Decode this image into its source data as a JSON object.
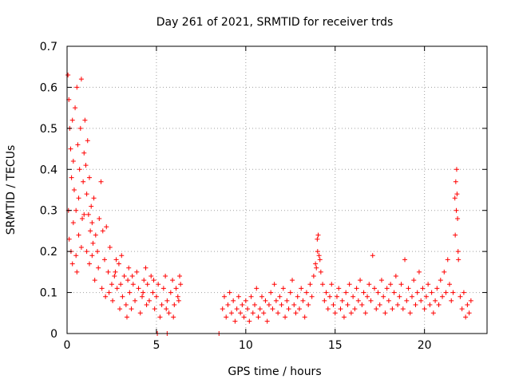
{
  "chart_data": {
    "type": "scatter",
    "title": "Day 261 of 2021, SRMTID for receiver trds",
    "xlabel": "GPS time / hours",
    "ylabel": "SRMTID / TECUs",
    "xlim": [
      0,
      23.5
    ],
    "ylim": [
      0,
      0.7
    ],
    "x_ticks": [
      0,
      5,
      10,
      15,
      20
    ],
    "y_ticks": [
      0,
      0.1,
      0.2,
      0.3,
      0.4,
      0.5,
      0.6,
      0.7
    ],
    "x_tick_labels": [
      "0",
      "5",
      "10",
      "15",
      "20"
    ],
    "y_tick_labels": [
      "0",
      "0.1",
      "0.2",
      "0.3",
      "0.4",
      "0.5",
      "0.6",
      "0.7"
    ],
    "grid": true,
    "marker": "+",
    "color": "#ff0000",
    "series": [
      {
        "name": "SRMTID",
        "points": [
          [
            0.05,
            0.63
          ],
          [
            0.1,
            0.57
          ],
          [
            0.15,
            0.5
          ],
          [
            0.2,
            0.45
          ],
          [
            0.25,
            0.38
          ],
          [
            0.3,
            0.52
          ],
          [
            0.35,
            0.42
          ],
          [
            0.4,
            0.35
          ],
          [
            0.45,
            0.55
          ],
          [
            0.5,
            0.3
          ],
          [
            0.55,
            0.6
          ],
          [
            0.6,
            0.46
          ],
          [
            0.65,
            0.33
          ],
          [
            0.7,
            0.4
          ],
          [
            0.75,
            0.5
          ],
          [
            0.8,
            0.62
          ],
          [
            0.85,
            0.28
          ],
          [
            0.9,
            0.37
          ],
          [
            0.95,
            0.44
          ],
          [
            1.0,
            0.52
          ],
          [
            1.05,
            0.41
          ],
          [
            1.1,
            0.34
          ],
          [
            1.15,
            0.47
          ],
          [
            1.2,
            0.29
          ],
          [
            1.25,
            0.38
          ],
          [
            1.3,
            0.25
          ],
          [
            1.35,
            0.31
          ],
          [
            1.4,
            0.27
          ],
          [
            1.45,
            0.22
          ],
          [
            1.5,
            0.33
          ],
          [
            1.6,
            0.24
          ],
          [
            1.7,
            0.2
          ],
          [
            1.8,
            0.28
          ],
          [
            1.9,
            0.37
          ],
          [
            2.0,
            0.25
          ],
          [
            2.1,
            0.18
          ],
          [
            2.2,
            0.26
          ],
          [
            2.3,
            0.15
          ],
          [
            2.4,
            0.21
          ],
          [
            2.5,
            0.12
          ],
          [
            0.12,
            0.23
          ],
          [
            0.22,
            0.2
          ],
          [
            0.35,
            0.27
          ],
          [
            0.5,
            0.19
          ],
          [
            0.65,
            0.24
          ],
          [
            0.8,
            0.21
          ],
          [
            0.95,
            0.29
          ],
          [
            1.1,
            0.2
          ],
          [
            1.25,
            0.17
          ],
          [
            1.4,
            0.19
          ],
          [
            0.08,
            0.3
          ],
          [
            0.3,
            0.17
          ],
          [
            0.55,
            0.15
          ],
          [
            1.55,
            0.13
          ],
          [
            1.75,
            0.16
          ],
          [
            1.95,
            0.11
          ],
          [
            2.15,
            0.09
          ],
          [
            2.35,
            0.1
          ],
          [
            2.55,
            0.08
          ],
          [
            2.65,
            0.14
          ],
          [
            2.7,
            0.15
          ],
          [
            2.8,
            0.11
          ],
          [
            2.9,
            0.17
          ],
          [
            3.0,
            0.12
          ],
          [
            3.1,
            0.09
          ],
          [
            3.2,
            0.14
          ],
          [
            3.3,
            0.07
          ],
          [
            3.4,
            0.13
          ],
          [
            3.5,
            0.1
          ],
          [
            3.6,
            0.06
          ],
          [
            3.7,
            0.12
          ],
          [
            3.8,
            0.08
          ],
          [
            3.9,
            0.15
          ],
          [
            4.0,
            0.11
          ],
          [
            4.1,
            0.05
          ],
          [
            4.2,
            0.09
          ],
          [
            4.3,
            0.13
          ],
          [
            4.4,
            0.16
          ],
          [
            4.5,
            0.12
          ],
          [
            4.6,
            0.08
          ],
          [
            4.7,
            0.14
          ],
          [
            4.8,
            0.1
          ],
          [
            4.9,
            0.06
          ],
          [
            5.0,
            0.09
          ],
          [
            5.1,
            0.12
          ],
          [
            5.2,
            0.04
          ],
          [
            5.3,
            0.07
          ],
          [
            5.4,
            0.11
          ],
          [
            5.5,
            0.14
          ],
          [
            5.6,
            0.08
          ],
          [
            5.7,
            0.05
          ],
          [
            5.8,
            0.1
          ],
          [
            5.9,
            0.13
          ],
          [
            6.0,
            0.07
          ],
          [
            6.1,
            0.11
          ],
          [
            6.2,
            0.09
          ],
          [
            6.3,
            0.14
          ],
          [
            6.35,
            0.12
          ],
          [
            2.75,
            0.18
          ],
          [
            3.45,
            0.16
          ],
          [
            3.05,
            0.19
          ],
          [
            3.65,
            0.14
          ],
          [
            4.25,
            0.1
          ],
          [
            4.45,
            0.07
          ],
          [
            4.85,
            0.13
          ],
          [
            5.55,
            0.06
          ],
          [
            5.95,
            0.04
          ],
          [
            6.25,
            0.08
          ],
          [
            3.35,
            0.04
          ],
          [
            2.95,
            0.06
          ],
          [
            5.05,
            0.0
          ],
          [
            5.6,
            0.0
          ],
          [
            8.5,
            0.0
          ],
          [
            8.7,
            0.06
          ],
          [
            8.8,
            0.09
          ],
          [
            8.9,
            0.04
          ],
          [
            9.0,
            0.07
          ],
          [
            9.1,
            0.1
          ],
          [
            9.2,
            0.05
          ],
          [
            9.3,
            0.08
          ],
          [
            9.4,
            0.03
          ],
          [
            9.5,
            0.06
          ],
          [
            9.6,
            0.09
          ],
          [
            9.7,
            0.05
          ],
          [
            9.8,
            0.07
          ],
          [
            9.9,
            0.04
          ],
          [
            10.0,
            0.08
          ],
          [
            10.1,
            0.06
          ],
          [
            10.2,
            0.03
          ],
          [
            10.3,
            0.09
          ],
          [
            10.4,
            0.05
          ],
          [
            10.5,
            0.07
          ],
          [
            10.6,
            0.11
          ],
          [
            10.7,
            0.04
          ],
          [
            10.8,
            0.06
          ],
          [
            10.9,
            0.09
          ],
          [
            11.0,
            0.05
          ],
          [
            11.1,
            0.08
          ],
          [
            11.2,
            0.03
          ],
          [
            11.3,
            0.07
          ],
          [
            11.4,
            0.1
          ],
          [
            11.5,
            0.06
          ],
          [
            11.6,
            0.12
          ],
          [
            11.7,
            0.08
          ],
          [
            11.8,
            0.05
          ],
          [
            11.9,
            0.09
          ],
          [
            12.0,
            0.07
          ],
          [
            12.1,
            0.11
          ],
          [
            12.2,
            0.04
          ],
          [
            12.3,
            0.08
          ],
          [
            12.4,
            0.06
          ],
          [
            12.5,
            0.1
          ],
          [
            12.6,
            0.13
          ],
          [
            12.7,
            0.07
          ],
          [
            12.8,
            0.05
          ],
          [
            12.9,
            0.09
          ],
          [
            13.0,
            0.06
          ],
          [
            13.1,
            0.11
          ],
          [
            13.2,
            0.08
          ],
          [
            13.3,
            0.04
          ],
          [
            13.4,
            0.1
          ],
          [
            13.5,
            0.07
          ],
          [
            13.6,
            0.12
          ],
          [
            13.7,
            0.09
          ],
          [
            13.8,
            0.14
          ],
          [
            13.9,
            0.17
          ],
          [
            14.0,
            0.23
          ],
          [
            14.05,
            0.24
          ],
          [
            14.1,
            0.19
          ],
          [
            14.2,
            0.15
          ],
          [
            14.3,
            0.12
          ],
          [
            14.4,
            0.08
          ],
          [
            14.5,
            0.1
          ],
          [
            14.6,
            0.06
          ],
          [
            14.7,
            0.09
          ],
          [
            14.8,
            0.12
          ],
          [
            14.9,
            0.07
          ],
          [
            15.0,
            0.05
          ],
          [
            15.1,
            0.09
          ],
          [
            15.2,
            0.11
          ],
          [
            15.3,
            0.06
          ],
          [
            15.4,
            0.08
          ],
          [
            15.5,
            0.04
          ],
          [
            15.6,
            0.1
          ],
          [
            15.7,
            0.07
          ],
          [
            15.8,
            0.12
          ],
          [
            15.9,
            0.05
          ],
          [
            16.0,
            0.09
          ],
          [
            16.1,
            0.06
          ],
          [
            16.2,
            0.11
          ],
          [
            16.3,
            0.08
          ],
          [
            16.4,
            0.13
          ],
          [
            16.5,
            0.07
          ],
          [
            16.6,
            0.1
          ],
          [
            16.7,
            0.05
          ],
          [
            16.8,
            0.09
          ],
          [
            16.9,
            0.12
          ],
          [
            17.0,
            0.08
          ],
          [
            17.1,
            0.19
          ],
          [
            17.2,
            0.11
          ],
          [
            17.3,
            0.06
          ],
          [
            17.4,
            0.1
          ],
          [
            17.5,
            0.07
          ],
          [
            17.6,
            0.13
          ],
          [
            17.7,
            0.09
          ],
          [
            17.8,
            0.05
          ],
          [
            17.9,
            0.11
          ],
          [
            18.0,
            0.08
          ],
          [
            18.1,
            0.12
          ],
          [
            18.2,
            0.06
          ],
          [
            18.3,
            0.1
          ],
          [
            18.4,
            0.14
          ],
          [
            18.5,
            0.07
          ],
          [
            18.6,
            0.09
          ],
          [
            18.7,
            0.12
          ],
          [
            18.8,
            0.06
          ],
          [
            18.9,
            0.18
          ],
          [
            19.0,
            0.08
          ],
          [
            19.1,
            0.11
          ],
          [
            19.2,
            0.05
          ],
          [
            19.3,
            0.09
          ],
          [
            19.4,
            0.13
          ],
          [
            19.5,
            0.07
          ],
          [
            19.6,
            0.1
          ],
          [
            19.7,
            0.15
          ],
          [
            19.8,
            0.08
          ],
          [
            19.9,
            0.11
          ],
          [
            20.0,
            0.06
          ],
          [
            20.1,
            0.09
          ],
          [
            20.2,
            0.12
          ],
          [
            20.3,
            0.07
          ],
          [
            20.4,
            0.1
          ],
          [
            20.5,
            0.05
          ],
          [
            20.6,
            0.08
          ],
          [
            20.7,
            0.11
          ],
          [
            20.8,
            0.07
          ],
          [
            20.9,
            0.13
          ],
          [
            21.0,
            0.09
          ],
          [
            21.1,
            0.15
          ],
          [
            21.2,
            0.1
          ],
          [
            21.3,
            0.18
          ],
          [
            21.4,
            0.12
          ],
          [
            21.5,
            0.08
          ],
          [
            21.6,
            0.1
          ],
          [
            21.7,
            0.33
          ],
          [
            21.75,
            0.37
          ],
          [
            21.8,
            0.4
          ],
          [
            21.85,
            0.28
          ],
          [
            21.9,
            0.18
          ],
          [
            22.0,
            0.09
          ],
          [
            22.1,
            0.06
          ],
          [
            22.2,
            0.1
          ],
          [
            22.3,
            0.04
          ],
          [
            22.4,
            0.07
          ],
          [
            22.5,
            0.05
          ],
          [
            22.6,
            0.08
          ],
          [
            21.72,
            0.24
          ],
          [
            21.78,
            0.3
          ],
          [
            21.82,
            0.34
          ],
          [
            21.88,
            0.2
          ],
          [
            14.02,
            0.2
          ],
          [
            13.95,
            0.16
          ],
          [
            14.15,
            0.18
          ]
        ]
      }
    ]
  }
}
